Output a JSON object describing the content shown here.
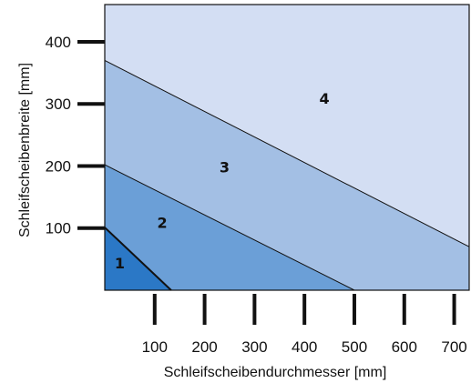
{
  "chart_data": {
    "type": "area",
    "title": "",
    "xlabel": "Schleifscheibendurchmesser [mm]",
    "ylabel": "Schleifscheibenbreite [mm]",
    "xlim": [
      0,
      730
    ],
    "ylim": [
      0,
      460
    ],
    "x_ticks": [
      100,
      200,
      300,
      400,
      500,
      600,
      700
    ],
    "x_tick_labels": [
      "100",
      "200",
      "300",
      "400",
      "500",
      "600",
      "700"
    ],
    "y_ticks": [
      100,
      200,
      300,
      400
    ],
    "y_tick_labels": [
      "100",
      "200",
      "300",
      "400"
    ],
    "grid": false,
    "zones": [
      {
        "label": "4",
        "color": "#d3def3",
        "boundary": [
          [
            0,
            370
          ],
          [
            730,
            70
          ]
        ],
        "label_pos": [
          440,
          300
        ]
      },
      {
        "label": "3",
        "color": "#a3bfe4",
        "boundary": [
          [
            0,
            370
          ],
          [
            730,
            70
          ]
        ],
        "label_pos": [
          240,
          190
        ]
      },
      {
        "label": "2",
        "color": "#6b9fd7",
        "boundary": [
          [
            0,
            202
          ],
          [
            500,
            0
          ]
        ],
        "label_pos": [
          115,
          100
        ]
      },
      {
        "label": "1",
        "color": "#2b78c6",
        "boundary": [
          [
            0,
            101
          ],
          [
            133,
            0
          ]
        ],
        "label_pos": [
          30,
          35
        ]
      }
    ],
    "boundaries": [
      {
        "from": [
          0,
          370
        ],
        "to": [
          730,
          70
        ]
      },
      {
        "from": [
          0,
          202
        ],
        "to": [
          500,
          0
        ]
      },
      {
        "from": [
          0,
          101
        ],
        "to": [
          133,
          0
        ]
      }
    ]
  }
}
